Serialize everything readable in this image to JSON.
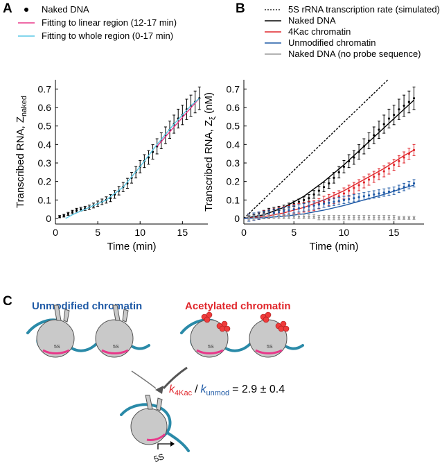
{
  "panels": {
    "A": "A",
    "B": "B",
    "C": "C"
  },
  "chart_data": [
    {
      "type": "scatter",
      "panel": "A",
      "xlabel": "Time (min)",
      "ylabel": "Transcribed RNA, Z",
      "ylabel_sub": "naked",
      "xlim": [
        0,
        18
      ],
      "ylim": [
        -0.03,
        0.75
      ],
      "xticks": [
        0,
        5,
        10,
        15
      ],
      "yticks": [
        0,
        0.1,
        0.2,
        0.3,
        0.4,
        0.5,
        0.6,
        0.7
      ],
      "legend_position": "top-left",
      "series": [
        {
          "name": "Naked DNA",
          "kind": "points",
          "color": "#000000",
          "x": [
            0.5,
            1,
            1.5,
            2,
            2.5,
            3,
            3.5,
            4,
            4.5,
            5,
            5.5,
            6,
            6.5,
            7,
            7.5,
            8,
            8.5,
            9,
            9.5,
            10,
            10.5,
            11,
            11.5,
            12,
            12.5,
            13,
            13.5,
            14,
            14.5,
            15,
            15.5,
            16,
            16.5,
            17
          ],
          "y": [
            0.01,
            0.015,
            0.025,
            0.035,
            0.045,
            0.05,
            0.055,
            0.06,
            0.07,
            0.08,
            0.09,
            0.1,
            0.11,
            0.13,
            0.15,
            0.17,
            0.19,
            0.22,
            0.25,
            0.28,
            0.31,
            0.33,
            0.36,
            0.39,
            0.42,
            0.45,
            0.48,
            0.51,
            0.54,
            0.56,
            0.59,
            0.61,
            0.63,
            0.65
          ],
          "err": [
            0.006,
            0.007,
            0.008,
            0.009,
            0.01,
            0.01,
            0.011,
            0.012,
            0.013,
            0.014,
            0.015,
            0.017,
            0.019,
            0.021,
            0.023,
            0.025,
            0.027,
            0.029,
            0.031,
            0.033,
            0.035,
            0.037,
            0.039,
            0.041,
            0.043,
            0.045,
            0.047,
            0.049,
            0.051,
            0.053,
            0.055,
            0.057,
            0.059,
            0.061
          ]
        },
        {
          "name": "Fitting to linear region (12-17 min)",
          "kind": "line",
          "color": "#e8388a",
          "x": [
            12,
            17
          ],
          "y": [
            0.39,
            0.65
          ]
        },
        {
          "name": "Fitting to whole region (0-17 min)",
          "kind": "line",
          "color": "#5bc8e6",
          "x": [
            1.2,
            2,
            4,
            6,
            8,
            10,
            12,
            14,
            16,
            17
          ],
          "y": [
            0.0,
            0.02,
            0.06,
            0.1,
            0.17,
            0.28,
            0.4,
            0.51,
            0.61,
            0.65
          ]
        }
      ]
    },
    {
      "type": "scatter",
      "panel": "B",
      "xlabel": "Time (min)",
      "ylabel": "Transcribed RNA, Z",
      "ylabel_sub": "ξ",
      "ylabel_unit": "(nM)",
      "xlim": [
        0,
        18
      ],
      "ylim": [
        -0.03,
        0.75
      ],
      "xticks": [
        0,
        5,
        10,
        15
      ],
      "yticks": [
        0,
        0.1,
        0.2,
        0.3,
        0.4,
        0.5,
        0.6,
        0.7
      ],
      "legend_position": "top-left",
      "series": [
        {
          "name": "5S rRNA transcription rate (simulated)",
          "kind": "dashed-line",
          "color": "#000000",
          "x": [
            0,
            14.4
          ],
          "y": [
            0,
            0.75
          ]
        },
        {
          "name": "Naked DNA",
          "kind": "points-fit",
          "color": "#000000",
          "x": [
            0.5,
            1,
            1.5,
            2,
            2.5,
            3,
            3.5,
            4,
            4.5,
            5,
            5.5,
            6,
            6.5,
            7,
            7.5,
            8,
            8.5,
            9,
            9.5,
            10,
            10.5,
            11,
            11.5,
            12,
            12.5,
            13,
            13.5,
            14,
            14.5,
            15,
            15.5,
            16,
            16.5,
            17
          ],
          "y": [
            0.01,
            0.015,
            0.025,
            0.035,
            0.045,
            0.05,
            0.055,
            0.06,
            0.07,
            0.08,
            0.09,
            0.1,
            0.11,
            0.13,
            0.15,
            0.17,
            0.19,
            0.22,
            0.25,
            0.28,
            0.31,
            0.33,
            0.36,
            0.39,
            0.42,
            0.45,
            0.48,
            0.51,
            0.54,
            0.56,
            0.59,
            0.61,
            0.63,
            0.65
          ],
          "err": [
            0.006,
            0.007,
            0.008,
            0.009,
            0.01,
            0.01,
            0.011,
            0.012,
            0.013,
            0.014,
            0.015,
            0.017,
            0.019,
            0.021,
            0.023,
            0.025,
            0.027,
            0.029,
            0.031,
            0.033,
            0.035,
            0.037,
            0.039,
            0.041,
            0.043,
            0.045,
            0.047,
            0.049,
            0.051,
            0.053,
            0.055,
            0.057,
            0.059,
            0.061
          ],
          "fit_x": [
            0,
            2,
            4,
            6,
            8,
            10,
            12,
            14,
            16,
            17
          ],
          "fit_y": [
            0,
            0.02,
            0.06,
            0.12,
            0.2,
            0.29,
            0.39,
            0.49,
            0.59,
            0.64
          ]
        },
        {
          "name": "4Kac chromatin",
          "kind": "points-fit",
          "color": "#e0262b",
          "x": [
            0.5,
            1,
            1.5,
            2,
            2.5,
            3,
            3.5,
            4,
            4.5,
            5,
            5.5,
            6,
            6.5,
            7,
            7.5,
            8,
            8.5,
            9,
            9.5,
            10,
            10.5,
            11,
            11.5,
            12,
            12.5,
            13,
            13.5,
            14,
            14.5,
            15,
            15.5,
            16,
            16.5,
            17
          ],
          "y": [
            0.005,
            0.01,
            0.015,
            0.02,
            0.025,
            0.03,
            0.035,
            0.04,
            0.045,
            0.05,
            0.055,
            0.06,
            0.065,
            0.07,
            0.08,
            0.09,
            0.1,
            0.11,
            0.12,
            0.135,
            0.15,
            0.165,
            0.18,
            0.195,
            0.21,
            0.225,
            0.24,
            0.255,
            0.27,
            0.29,
            0.31,
            0.33,
            0.35,
            0.37
          ],
          "err": [
            0.02,
            0.02,
            0.02,
            0.022,
            0.022,
            0.022,
            0.024,
            0.024,
            0.024,
            0.026,
            0.026,
            0.026,
            0.028,
            0.028,
            0.028,
            0.03,
            0.03,
            0.03,
            0.03,
            0.03,
            0.03,
            0.03,
            0.03,
            0.03,
            0.03,
            0.03,
            0.03,
            0.03,
            0.03,
            0.03,
            0.03,
            0.03,
            0.03,
            0.03
          ],
          "fit_x": [
            0,
            2,
            4,
            6,
            8,
            10,
            12,
            14,
            16,
            17
          ],
          "fit_y": [
            0,
            0.01,
            0.03,
            0.06,
            0.1,
            0.15,
            0.21,
            0.27,
            0.34,
            0.37
          ]
        },
        {
          "name": "Unmodified chromatin",
          "kind": "points-fit",
          "color": "#1f5aa6",
          "x": [
            0.5,
            1,
            1.5,
            2,
            2.5,
            3,
            3.5,
            4,
            4.5,
            5,
            5.5,
            6,
            6.5,
            7,
            7.5,
            8,
            8.5,
            9,
            9.5,
            10,
            10.5,
            11,
            11.5,
            12,
            12.5,
            13,
            13.5,
            14,
            14.5,
            15,
            15.5,
            16,
            16.5,
            17
          ],
          "y": [
            0.005,
            0.01,
            0.015,
            0.02,
            0.025,
            0.03,
            0.035,
            0.04,
            0.045,
            0.05,
            0.055,
            0.06,
            0.065,
            0.07,
            0.075,
            0.08,
            0.085,
            0.09,
            0.095,
            0.1,
            0.105,
            0.11,
            0.115,
            0.12,
            0.125,
            0.13,
            0.135,
            0.14,
            0.145,
            0.15,
            0.16,
            0.17,
            0.18,
            0.19
          ],
          "err": [
            0.02,
            0.02,
            0.02,
            0.02,
            0.02,
            0.02,
            0.02,
            0.02,
            0.02,
            0.02,
            0.02,
            0.02,
            0.02,
            0.02,
            0.02,
            0.02,
            0.02,
            0.02,
            0.02,
            0.02,
            0.02,
            0.02,
            0.02,
            0.02,
            0.02,
            0.02,
            0.02,
            0.02,
            0.02,
            0.02,
            0.02,
            0.02,
            0.02,
            0.02
          ],
          "fit_x": [
            0,
            2,
            4,
            6,
            8,
            10,
            12,
            14,
            16,
            17
          ],
          "fit_y": [
            0,
            0.004,
            0.012,
            0.025,
            0.045,
            0.07,
            0.1,
            0.13,
            0.165,
            0.18
          ]
        },
        {
          "name": "Naked DNA (no probe sequence)",
          "kind": "points",
          "color": "#999999",
          "x": [
            0.5,
            1,
            1.5,
            2,
            2.5,
            3,
            3.5,
            4,
            4.5,
            5,
            5.5,
            6,
            6.5,
            7,
            7.5,
            8,
            8.5,
            9,
            9.5,
            10,
            10.5,
            11,
            11.5,
            12,
            12.5,
            13,
            13.5,
            14,
            14.5,
            15,
            15.5,
            16,
            16.5,
            17
          ],
          "y": [
            0.005,
            0.005,
            0.01,
            0.01,
            0.01,
            0.01,
            0.01,
            0.01,
            0.01,
            0.01,
            0.01,
            0.01,
            0.01,
            0.01,
            0.005,
            0.005,
            0.005,
            0.005,
            0.005,
            0.005,
            0.005,
            0.005,
            0.005,
            0.005,
            0.005,
            0.005,
            0.005,
            0.005,
            0.005,
            0.005,
            0.003,
            0.003,
            0.003,
            0.003
          ],
          "err": [
            0.012,
            0.012,
            0.012,
            0.012,
            0.012,
            0.012,
            0.012,
            0.012,
            0.012,
            0.012,
            0.012,
            0.012,
            0.012,
            0.012,
            0.012,
            0.012,
            0.012,
            0.012,
            0.012,
            0.012,
            0.012,
            0.012,
            0.012,
            0.012,
            0.012,
            0.012,
            0.012,
            0.012,
            0.012,
            0.012,
            0.008,
            0.008,
            0.008,
            0.008
          ]
        }
      ]
    }
  ],
  "diagram_c": {
    "unmodified_label": "Unmodified chromatin",
    "unmodified_color": "#1f5aa6",
    "acetylated_label": "Acetylated chromatin",
    "acetylated_color": "#e0262b",
    "site_label": "5S",
    "equation_k": "k",
    "equation_num_sub": "4Kac",
    "equation_slash": "/",
    "equation_den_sub": "unmod",
    "equation_value": "= 2.9 ± 0.4",
    "arrow_label": "5S"
  }
}
